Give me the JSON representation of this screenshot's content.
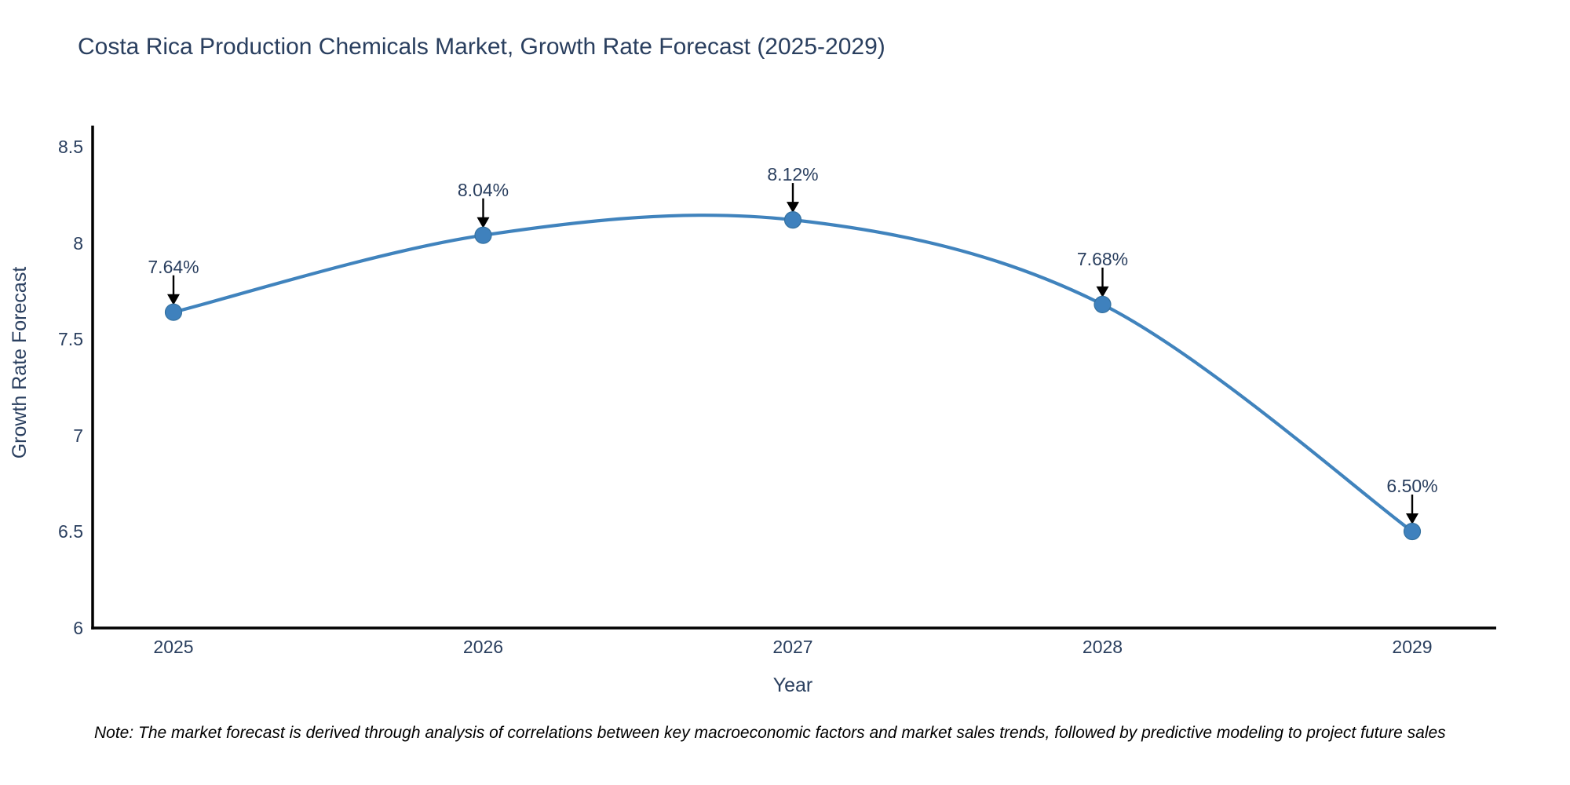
{
  "title": "Costa Rica Production Chemicals Market, Growth Rate Forecast (2025-2029)",
  "note": "Note: The market forecast is derived through analysis of correlations between key macroeconomic factors and market sales trends, followed by predictive modeling to project future sales",
  "chart_data": {
    "type": "line",
    "title": "Costa Rica Production Chemicals Market, Growth Rate Forecast (2025-2029)",
    "xlabel": "Year",
    "ylabel": "Growth Rate Forecast",
    "x": [
      2025,
      2026,
      2027,
      2028,
      2029
    ],
    "series": [
      {
        "name": "Growth Rate Forecast",
        "values": [
          7.64,
          8.04,
          8.12,
          7.68,
          6.5
        ]
      }
    ],
    "point_labels": [
      "7.64%",
      "8.04%",
      "8.12%",
      "7.68%",
      "6.50%"
    ],
    "xtick_labels": [
      "2025",
      "2026",
      "2027",
      "2028",
      "2029"
    ],
    "yticks": [
      6,
      6.5,
      7,
      7.5,
      8,
      8.5
    ],
    "ytick_labels": [
      "6",
      "6.5",
      "7",
      "7.5",
      "8",
      "8.5"
    ],
    "xlim": [
      2024.74,
      2029.27
    ],
    "ylim": [
      6,
      8.6
    ],
    "grid": false,
    "legend_position": "none",
    "line_shape": "spline",
    "annotation_style": "value-above-with-down-arrow",
    "colors": {
      "line": "#4083bd",
      "marker": "#3f81bd",
      "marker_edge": "#35719f",
      "axis": "#000000",
      "text": "#2a3f5f",
      "arrow": "#000000",
      "background": "#ffffff"
    }
  }
}
